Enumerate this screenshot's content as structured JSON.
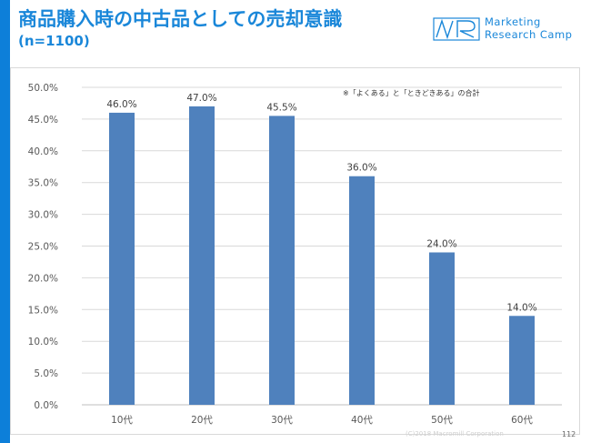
{
  "slide": {
    "title": "商品購入時の中古品としての売却意識",
    "subtitle": "(n=1100)",
    "logo_line1": "Marketing",
    "logo_line2": "Research Camp",
    "note": "※「よくある」と「ときどきある」の合計",
    "copyright": "(C)2018 Macromill Corporation",
    "page_number": "112"
  },
  "colors": {
    "accent": "#0d7fd9",
    "title": "#1a87d9",
    "bar": "#4f81bd"
  },
  "chart_data": {
    "type": "bar",
    "categories": [
      "10代",
      "20代",
      "30代",
      "40代",
      "50代",
      "60代"
    ],
    "values": [
      46.0,
      47.0,
      45.5,
      36.0,
      24.0,
      14.0
    ],
    "data_labels": [
      "46.0%",
      "47.0%",
      "45.5%",
      "36.0%",
      "24.0%",
      "14.0%"
    ],
    "ylim": [
      0,
      50
    ],
    "y_ticks": [
      0,
      5,
      10,
      15,
      20,
      25,
      30,
      35,
      40,
      45,
      50
    ],
    "y_tick_labels": [
      "0.0%",
      "5.0%",
      "10.0%",
      "15.0%",
      "20.0%",
      "25.0%",
      "30.0%",
      "35.0%",
      "40.0%",
      "45.0%",
      "50.0%"
    ],
    "grid": true,
    "legend": "none"
  }
}
